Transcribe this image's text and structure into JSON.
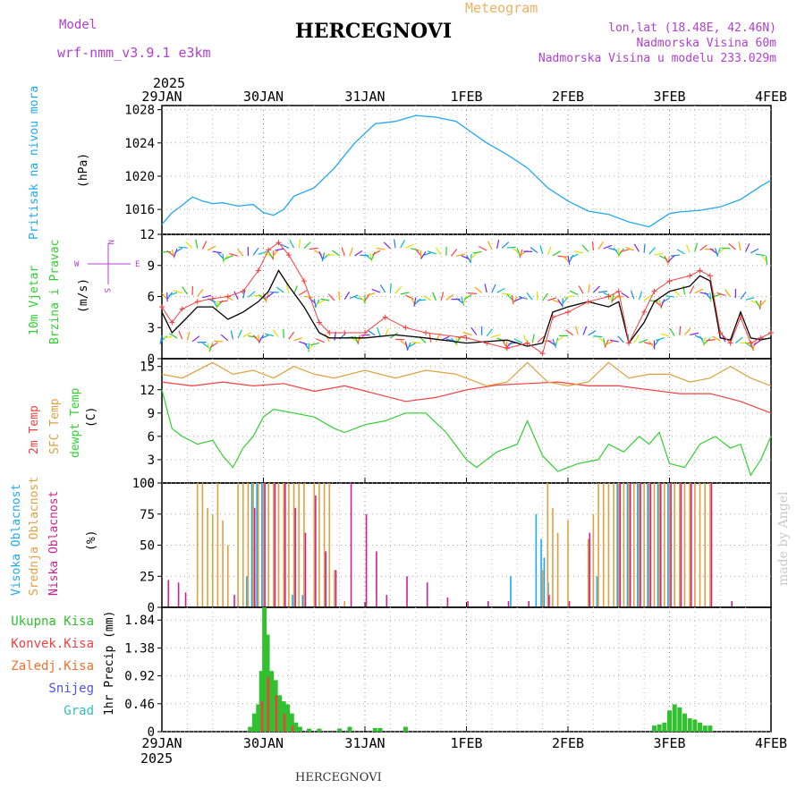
{
  "header": {
    "model_label": "Model",
    "model_name": "wrf-nmm_v3.9.1 e3km",
    "meteogram_label": "Meteogram",
    "station": "HERCEGNOVI",
    "lonlat": "lon,lat (18.48E, 42.46N)",
    "elevation": "Nadmorska Visina 60m",
    "model_elevation": "Nadmorska Visina u modelu 233.029m"
  },
  "footer": {
    "station": "HERCEGNOVI",
    "credit": "made by Angel"
  },
  "time_axis": {
    "year_top": "2025",
    "year_bottom": "2025",
    "labels": [
      "29JAN",
      "30JAN",
      "31JAN",
      "1FEB",
      "2FEB",
      "3FEB",
      "4FEB"
    ]
  },
  "colors": {
    "pressure": "#20a8f0",
    "wind": "#000000",
    "gust": "#f04040",
    "t2m": "#f04040",
    "tsfc": "#e0a040",
    "dewpt": "#30d030",
    "high_cloud": "#20a8f0",
    "mid_cloud": "#e0a040",
    "low_cloud": "#d02090",
    "precip_total": "#30c030",
    "precip_conv": "#f04040"
  },
  "chart_data": [
    {
      "type": "line",
      "title": "Pritisak na nivou mora",
      "ylabel": "(hPa)",
      "ylim": [
        1013,
        1028.5
      ],
      "yticks": [
        "1016",
        "1020",
        "1024",
        "1028"
      ],
      "x_days": [
        0,
        0.1,
        0.2,
        0.3,
        0.4,
        0.5,
        0.6,
        0.75,
        0.9,
        1.0,
        1.1,
        1.2,
        1.3,
        1.5,
        1.7,
        1.9,
        2.1,
        2.3,
        2.5,
        2.7,
        2.9,
        3.0,
        3.2,
        3.4,
        3.6,
        3.8,
        4.0,
        4.2,
        4.4,
        4.6,
        4.8,
        5.0,
        5.1,
        5.3,
        5.5,
        5.7,
        5.9,
        6.0
      ],
      "values": [
        1014.2,
        1015.6,
        1016.5,
        1017.5,
        1017.0,
        1016.7,
        1016.8,
        1016.4,
        1016.6,
        1015.6,
        1015.3,
        1016.0,
        1017.6,
        1018.6,
        1021.0,
        1024.0,
        1026.3,
        1026.6,
        1027.3,
        1027.1,
        1026.6,
        1025.7,
        1024.0,
        1022.6,
        1021.0,
        1018.6,
        1017.0,
        1015.8,
        1015.4,
        1014.5,
        1013.9,
        1015.5,
        1015.7,
        1015.9,
        1016.3,
        1017.2,
        1018.8,
        1019.5
      ]
    },
    {
      "type": "line",
      "title": "10m Vjetar Brzina i Pravac",
      "ylabel": "(m/s)",
      "ylim": [
        0,
        12
      ],
      "yticks": [
        "0",
        "3",
        "6",
        "9",
        "12"
      ],
      "legend_compass": [
        "N",
        "E",
        "S",
        "W"
      ],
      "series": [
        {
          "name": "wind speed",
          "x_days": [
            0,
            0.1,
            0.2,
            0.35,
            0.5,
            0.65,
            0.8,
            0.95,
            1.05,
            1.15,
            1.25,
            1.4,
            1.55,
            1.65,
            1.8,
            2.0,
            2.3,
            2.6,
            3.0,
            3.4,
            3.6,
            3.75,
            3.85,
            4.0,
            4.2,
            4.4,
            4.5,
            4.6,
            4.75,
            4.85,
            5.0,
            5.2,
            5.3,
            5.4,
            5.5,
            5.6,
            5.7,
            5.8,
            5.9,
            6.0
          ],
          "values": [
            4.5,
            2.5,
            3.5,
            5.0,
            5.0,
            3.8,
            4.5,
            5.5,
            6.5,
            8.5,
            7.0,
            5.0,
            2.5,
            2.0,
            2.0,
            2.0,
            2.3,
            2.0,
            1.5,
            1.8,
            1.2,
            1.5,
            4.5,
            5.0,
            5.5,
            5.0,
            5.5,
            1.5,
            3.5,
            5.5,
            6.5,
            7.0,
            8.0,
            7.5,
            2.0,
            1.8,
            4.5,
            2.0,
            1.8,
            2.0
          ]
        },
        {
          "name": "gust",
          "x_days": [
            0,
            0.1,
            0.2,
            0.35,
            0.5,
            0.65,
            0.8,
            0.95,
            1.05,
            1.15,
            1.25,
            1.4,
            1.55,
            1.65,
            1.8,
            2.0,
            2.2,
            2.4,
            2.6,
            3.0,
            3.2,
            3.4,
            3.6,
            3.75,
            3.85,
            4.0,
            4.2,
            4.4,
            4.5,
            4.6,
            4.75,
            4.85,
            5.0,
            5.2,
            5.3,
            5.4,
            5.5,
            5.6,
            5.7,
            5.8,
            5.9,
            6.0
          ],
          "values": [
            5.0,
            3.5,
            4.8,
            5.5,
            5.8,
            6.0,
            6.5,
            8.5,
            10.5,
            11.2,
            10.0,
            7.5,
            3.5,
            2.5,
            2.5,
            2.5,
            4.0,
            3.0,
            2.5,
            2.0,
            1.5,
            1.0,
            1.5,
            0.5,
            4.0,
            4.5,
            5.5,
            6.0,
            6.5,
            1.5,
            4.5,
            6.5,
            7.5,
            8.0,
            8.5,
            8.0,
            2.5,
            1.5,
            4.0,
            1.5,
            2.0,
            2.5
          ]
        }
      ]
    },
    {
      "type": "line",
      "title": "2m Temp / SFC Temp / dewpt Temp",
      "ylabel": "(C)",
      "ylim": [
        0,
        16
      ],
      "yticks": [
        "0",
        "3",
        "6",
        "9",
        "12",
        "15"
      ],
      "series": [
        {
          "name": "2m Temp",
          "x_days": [
            0,
            0.3,
            0.6,
            0.9,
            1.2,
            1.5,
            1.8,
            2.1,
            2.4,
            2.7,
            3.0,
            3.3,
            3.6,
            3.9,
            4.2,
            4.5,
            4.8,
            5.1,
            5.4,
            5.7,
            6.0
          ],
          "values": [
            13.0,
            12.5,
            13.0,
            12.5,
            12.8,
            11.8,
            12.5,
            11.5,
            10.5,
            11.0,
            12.0,
            12.6,
            12.8,
            13.0,
            12.5,
            12.5,
            12.0,
            11.5,
            11.5,
            10.5,
            9.0
          ]
        },
        {
          "name": "SFC Temp",
          "x_days": [
            0,
            0.2,
            0.5,
            0.7,
            0.9,
            1.1,
            1.3,
            1.5,
            1.7,
            2.0,
            2.3,
            2.6,
            2.9,
            3.2,
            3.4,
            3.6,
            3.8,
            4.0,
            4.2,
            4.4,
            4.6,
            4.8,
            5.0,
            5.2,
            5.4,
            5.6,
            5.8,
            6.0
          ],
          "values": [
            14.0,
            13.5,
            15.5,
            14.0,
            14.5,
            13.5,
            15.0,
            14.0,
            13.5,
            14.5,
            13.5,
            14.5,
            14.0,
            12.5,
            13.0,
            15.5,
            13.0,
            12.5,
            13.0,
            15.5,
            13.5,
            14.0,
            14.0,
            13.0,
            13.5,
            15.0,
            13.5,
            12.5
          ]
        },
        {
          "name": "dewpt Temp",
          "x_days": [
            0,
            0.1,
            0.2,
            0.35,
            0.5,
            0.6,
            0.7,
            0.8,
            0.9,
            1.0,
            1.1,
            1.3,
            1.5,
            1.7,
            1.8,
            2.0,
            2.2,
            2.4,
            2.6,
            2.8,
            3.0,
            3.1,
            3.3,
            3.5,
            3.6,
            3.75,
            3.9,
            4.0,
            4.1,
            4.3,
            4.4,
            4.55,
            4.7,
            4.8,
            4.9,
            5.0,
            5.15,
            5.3,
            5.45,
            5.6,
            5.7,
            5.8,
            5.9,
            6.0
          ],
          "values": [
            12.0,
            7.0,
            6.0,
            5.0,
            5.5,
            3.5,
            2.0,
            4.5,
            6.0,
            8.5,
            9.5,
            9.0,
            8.5,
            7.0,
            6.5,
            7.5,
            8.0,
            9.0,
            9.0,
            6.5,
            3.0,
            2.0,
            4.0,
            5.0,
            8.0,
            3.5,
            1.5,
            2.0,
            2.5,
            3.0,
            5.0,
            4.0,
            6.0,
            5.0,
            6.5,
            2.5,
            2.0,
            5.0,
            6.0,
            4.5,
            5.0,
            1.0,
            3.0,
            6.0
          ]
        }
      ]
    },
    {
      "type": "bar",
      "title": "Visoka Oblacnost / Srednja Oblacnost / Niska Oblacnost",
      "ylabel": "(%)",
      "ylim": [
        0,
        100
      ],
      "yticks": [
        "0",
        "25",
        "50",
        "75",
        "100"
      ],
      "series": [
        {
          "name": "Visoka Oblacnost",
          "x_days": [
            0.85,
            0.9,
            0.95,
            1.0,
            1.3,
            1.4,
            3.45,
            3.7,
            3.75,
            3.78,
            3.82,
            4.3,
            4.5,
            4.6,
            4.7,
            4.8,
            4.9,
            5.0
          ],
          "values": [
            25,
            100,
            100,
            100,
            10,
            10,
            25,
            75,
            55,
            40,
            20,
            25,
            100,
            100,
            100,
            100,
            100,
            100
          ]
        },
        {
          "name": "Srednja Oblacnost",
          "x_days": [
            0.35,
            0.4,
            0.45,
            0.5,
            0.55,
            0.6,
            0.65,
            0.75,
            0.8,
            0.85,
            0.9,
            0.95,
            1.0,
            1.05,
            1.1,
            1.15,
            1.2,
            1.25,
            1.3,
            1.35,
            1.4,
            1.5,
            1.55,
            1.6,
            1.65,
            1.7,
            1.8,
            3.75,
            3.8,
            3.85,
            3.9,
            4.0,
            4.2,
            4.25,
            4.3,
            4.35,
            4.4,
            4.45,
            4.5,
            4.55,
            4.6,
            4.65,
            4.7,
            4.75,
            4.8,
            4.85,
            4.9,
            4.95,
            5.0,
            5.05,
            5.1,
            5.15,
            5.2,
            5.25,
            5.3,
            5.35,
            5.4
          ],
          "values": [
            100,
            100,
            80,
            75,
            100,
            70,
            50,
            100,
            100,
            100,
            100,
            100,
            100,
            100,
            100,
            100,
            100,
            100,
            100,
            100,
            100,
            100,
            100,
            100,
            100,
            30,
            5,
            30,
            100,
            80,
            60,
            70,
            55,
            75,
            100,
            100,
            100,
            100,
            100,
            100,
            100,
            100,
            100,
            100,
            100,
            100,
            100,
            100,
            100,
            100,
            100,
            100,
            100,
            100,
            100,
            100,
            100
          ]
        },
        {
          "name": "Niska Oblacnost",
          "x_days": [
            0.05,
            0.15,
            0.22,
            0.7,
            0.9,
            1.0,
            1.1,
            1.2,
            1.3,
            1.4,
            1.5,
            1.6,
            1.7,
            1.85,
            2.0,
            2.1,
            2.2,
            2.4,
            2.6,
            2.8,
            3.0,
            3.2,
            3.4,
            3.6,
            3.8,
            4.0,
            4.2,
            4.5,
            4.6,
            4.7,
            4.8,
            4.9,
            5.0,
            5.1,
            5.2,
            5.4,
            5.6
          ],
          "values": [
            22,
            20,
            12,
            10,
            80,
            100,
            100,
            100,
            80,
            60,
            90,
            45,
            30,
            100,
            75,
            45,
            10,
            25,
            20,
            8,
            5,
            5,
            5,
            5,
            10,
            5,
            60,
            100,
            100,
            100,
            100,
            100,
            100,
            100,
            100,
            100,
            5
          ]
        }
      ]
    },
    {
      "type": "bar",
      "title": "1hr Precip",
      "ylabel": "1hr Precip (mm)",
      "ylim": [
        0,
        2.05
      ],
      "yticks": [
        "0",
        "0.46",
        "0.92",
        "1.38",
        "1.84"
      ],
      "legend": [
        "Ukupna Kisa",
        "Konvek.Kisa",
        "Zaledj.Kisa",
        "Snijeg",
        "Grad"
      ],
      "legend_colors": [
        "#30c030",
        "#f04040",
        "#f07030",
        "#5050f0",
        "#30c0c0"
      ],
      "series": [
        {
          "name": "Ukupna Kisa",
          "x_days": [
            0.87,
            0.91,
            0.95,
            0.98,
            1.01,
            1.04,
            1.08,
            1.12,
            1.16,
            1.2,
            1.24,
            1.28,
            1.32,
            1.36,
            1.45,
            1.55,
            1.75,
            1.85,
            2.1,
            2.15,
            2.4,
            4.85,
            4.9,
            4.95,
            5.0,
            5.05,
            5.1,
            5.15,
            5.2,
            5.25,
            5.3,
            5.35,
            5.4
          ],
          "values": [
            0.08,
            0.3,
            0.45,
            1.0,
            2.05,
            1.6,
            1.0,
            0.85,
            0.6,
            0.5,
            0.45,
            0.3,
            0.15,
            0.08,
            0.05,
            0.05,
            0.05,
            0.08,
            0.06,
            0.06,
            0.08,
            0.1,
            0.12,
            0.15,
            0.35,
            0.45,
            0.4,
            0.3,
            0.22,
            0.2,
            0.15,
            0.1,
            0.1
          ]
        },
        {
          "name": "Konvek.Kisa",
          "x_days": [
            0.98,
            1.04,
            1.12,
            1.2,
            1.28
          ],
          "values": [
            0.5,
            0.9,
            0.6,
            0.3,
            0.1
          ]
        }
      ]
    }
  ],
  "panel_labels": {
    "pressure": "Pritisak na nivou mora",
    "pressure_unit": "(hPa)",
    "wind_1": "10m Vjetar",
    "wind_2": "Brzina i Pravac",
    "wind_unit": "(m/s)",
    "temp_2m": "2m Temp",
    "temp_sfc": "SFC Temp",
    "temp_dew": "dewpt Temp",
    "temp_unit": "(C)",
    "cloud_high": "Visoka Oblacnost",
    "cloud_mid": "Srednja Oblacnost",
    "cloud_low": "Niska Oblacnost",
    "cloud_unit": "(%)",
    "precip_unit": "1hr Precip (mm)"
  }
}
